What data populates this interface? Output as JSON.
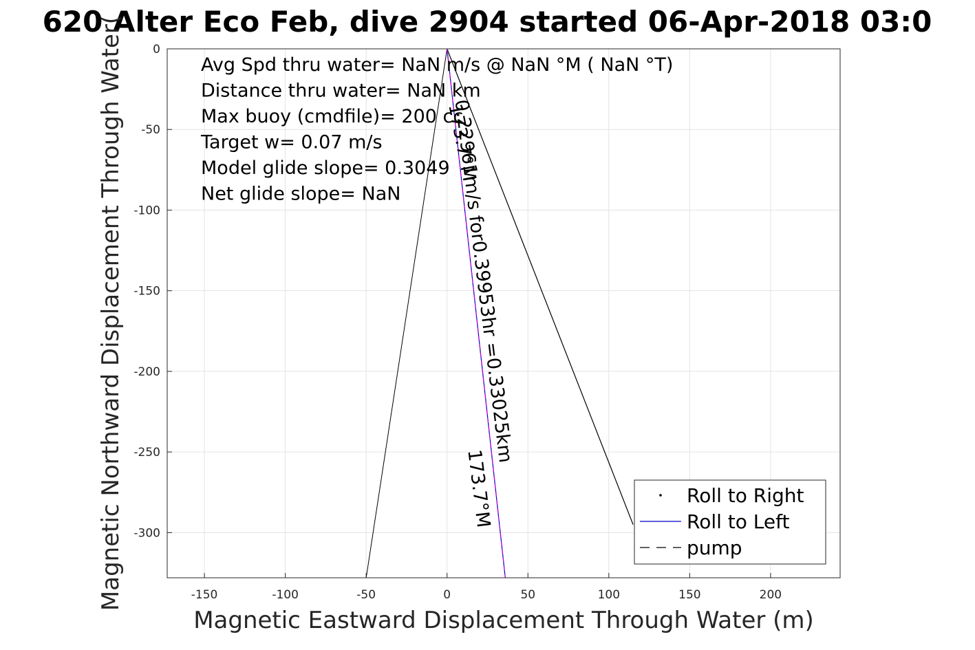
{
  "chart_data": {
    "type": "line",
    "title": "620 Alter Eco Feb, dive 2904 started 06-Apr-2018 03:0",
    "xlabel": "Magnetic Eastward Displacement Through Water (m)",
    "ylabel": "Magnetic Northward Displacement Through Water(",
    "xlim": [
      -173,
      243
    ],
    "ylim": [
      -328,
      0
    ],
    "xticks": [
      -150,
      -100,
      -50,
      0,
      50,
      100,
      150,
      200
    ],
    "yticks": [
      0,
      -50,
      -100,
      -150,
      -200,
      -250,
      -300
    ],
    "grid": true,
    "legend_position": "bottom-right",
    "stats": [
      "Avg Spd thru water=   NaN m/s @   NaN °M (  NaN °T)",
      "Distance thru water=   NaN km",
      "Max buoy (cmdfile)= 200 cc",
      "Target w= 0.07 m/s",
      "Model glide slope= 0.3049",
      "Net glide slope=    NaN"
    ],
    "series": [
      {
        "name": "Roll to Right",
        "style": "dot",
        "color": "#000000",
        "x": [
          0,
          -50
        ],
        "y": [
          0,
          -328
        ]
      },
      {
        "name": "",
        "style": "solid",
        "color": "#000000",
        "x": [
          0,
          115
        ],
        "y": [
          0,
          -295
        ]
      },
      {
        "name": "Roll to Left",
        "style": "solid",
        "color": "#0000cc",
        "x": [
          0,
          36
        ],
        "y": [
          0,
          -328
        ]
      },
      {
        "name": "",
        "style": "dashed",
        "color": "#cc00cc",
        "x": [
          0,
          36
        ],
        "y": [
          0,
          -328
        ]
      },
      {
        "name": "pump",
        "style": "dashed",
        "color": "#000000",
        "x": [],
        "y": []
      }
    ],
    "annotations": [
      {
        "text": "173.7°M",
        "x": 1,
        "y": -35,
        "rotation": 79
      },
      {
        "text": "0.22961m/s for0.39953hr =0.33025km",
        "x": 5,
        "y": -32,
        "rotation": 83
      },
      {
        "text": "173.7°M",
        "x": 13,
        "y": -249,
        "rotation": 83
      }
    ]
  }
}
